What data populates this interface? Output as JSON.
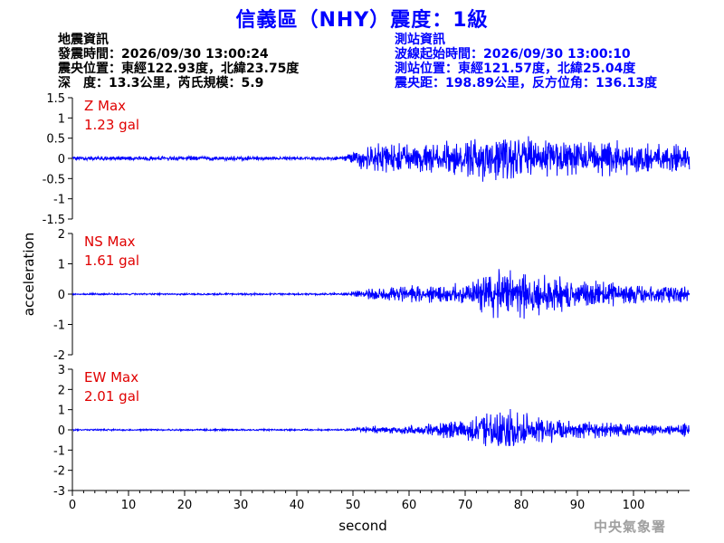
{
  "title": "信義區（NHY）震度：1級",
  "quake_info": {
    "heading": "地震資訊",
    "origin_time": "發震時間：2026/09/30 13:00:24",
    "epicenter": "震央位置：東經122.93度，北緯23.75度",
    "depth_magnitude": "深　度：13.3公里，芮氏規模：5.9"
  },
  "station_info": {
    "heading": "測站資訊",
    "wave_start": "波線起始時間：2026/09/30 13:00:10",
    "location": "測站位置：東經121.57度，北緯25.04度",
    "distance": "震央距：198.89公里，反方位角：136.13度"
  },
  "watermark": "中央氣象署",
  "chart_data": [
    {
      "type": "line",
      "component": "Z",
      "max_label": "Z Max",
      "max_value": "1.23 gal",
      "ylim": [
        -1.5,
        1.5
      ],
      "yticks": [
        -1.5,
        -1,
        -0.5,
        0,
        0.5,
        1,
        1.5
      ],
      "ytick_labels": [
        "-1.5",
        "-1",
        "-0.5",
        "0",
        "0.5",
        "1",
        "1.5"
      ],
      "envelope": {
        "t": [
          0,
          10,
          20,
          30,
          40,
          48,
          50,
          52,
          55,
          60,
          65,
          70,
          72,
          74,
          76,
          80,
          85,
          90,
          95,
          100,
          105,
          110
        ],
        "amp": [
          0.08,
          0.1,
          0.1,
          0.09,
          0.07,
          0.08,
          0.3,
          0.55,
          0.6,
          0.6,
          0.6,
          0.75,
          0.85,
          0.95,
          1.0,
          0.85,
          0.8,
          0.7,
          0.7,
          0.65,
          0.6,
          0.55
        ]
      }
    },
    {
      "type": "line",
      "component": "NS",
      "max_label": "NS Max",
      "max_value": "1.61 gal",
      "ylim": [
        -2,
        2
      ],
      "yticks": [
        -2,
        -1,
        0,
        1,
        2
      ],
      "ytick_labels": [
        "-2",
        "-1",
        "0",
        "1",
        "2"
      ],
      "envelope": {
        "t": [
          0,
          10,
          20,
          30,
          40,
          48,
          50,
          53,
          55,
          60,
          65,
          70,
          72,
          74,
          77,
          80,
          85,
          90,
          95,
          100,
          105,
          110
        ],
        "amp": [
          0.05,
          0.05,
          0.05,
          0.05,
          0.05,
          0.05,
          0.15,
          0.3,
          0.4,
          0.45,
          0.5,
          0.6,
          0.9,
          1.3,
          1.5,
          1.2,
          1.0,
          0.8,
          0.65,
          0.55,
          0.5,
          0.5
        ]
      }
    },
    {
      "type": "line",
      "component": "EW",
      "max_label": "EW Max",
      "max_value": "2.01 gal",
      "xlabel": "second",
      "ylim": [
        -3,
        3
      ],
      "yticks": [
        -3,
        -2,
        -1,
        0,
        1,
        2,
        3
      ],
      "ytick_labels": [
        "-3",
        "-2",
        "-1",
        "0",
        "1",
        "2",
        "3"
      ],
      "envelope": {
        "t": [
          0,
          10,
          20,
          30,
          40,
          48,
          50,
          53,
          55,
          60,
          65,
          70,
          72,
          75,
          77,
          80,
          85,
          90,
          95,
          100,
          105,
          110
        ],
        "amp": [
          0.07,
          0.07,
          0.07,
          0.07,
          0.07,
          0.07,
          0.15,
          0.3,
          0.3,
          0.4,
          0.55,
          0.8,
          1.2,
          1.6,
          1.7,
          1.4,
          1.0,
          0.75,
          0.6,
          0.5,
          0.45,
          0.5
        ]
      }
    }
  ],
  "shared_axis": {
    "ylabel": "acceleration",
    "xlabel": "second",
    "xlim": [
      0,
      110
    ],
    "xticks": [
      0,
      10,
      20,
      30,
      40,
      50,
      60,
      70,
      80,
      90,
      100
    ],
    "xtick_labels": [
      "0",
      "10",
      "20",
      "30",
      "40",
      "50",
      "60",
      "70",
      "80",
      "90",
      "100"
    ],
    "trace_color": "#0000ff",
    "label_color": "#e00000",
    "axis_color": "#000000"
  }
}
